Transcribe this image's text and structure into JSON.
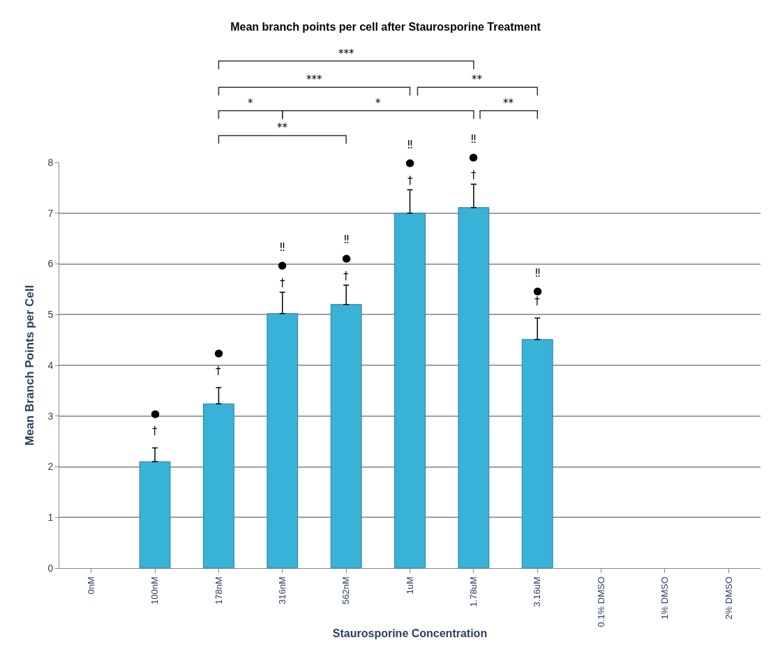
{
  "chart_data": {
    "type": "bar",
    "title": "Mean branch points per cell after Staurosporine Treatment",
    "xlabel": "Staurosporine Concentration",
    "ylabel": "Mean Branch Points per Cell",
    "categories": [
      "0nM",
      "100nM",
      "178nM",
      "316nM",
      "562nM",
      "1uM",
      "1.78uM",
      "3.16uM",
      "0.1% DMSO",
      "1% DMSO",
      "2% DMSO"
    ],
    "values": [
      null,
      2.1,
      3.24,
      5.02,
      5.2,
      7.0,
      7.11,
      4.51,
      null,
      null,
      null
    ],
    "errors": [
      null,
      0.27,
      0.32,
      0.42,
      0.38,
      0.46,
      0.46,
      0.42,
      null,
      null,
      null
    ],
    "color": "#38b2d6",
    "ylim": [
      0,
      8
    ],
    "yticks": [
      0,
      1,
      2,
      3,
      4,
      5,
      6,
      7,
      8
    ],
    "grid": "y",
    "annotations": [
      "†",
      "●",
      "†",
      "●",
      "†",
      "●",
      "‼",
      "†",
      "●",
      "‼",
      "†",
      "●",
      "‼",
      "†",
      "●",
      "‼",
      "†",
      "●",
      "‼",
      "***",
      "***",
      "**",
      "*",
      "*",
      "**",
      "**"
    ]
  }
}
